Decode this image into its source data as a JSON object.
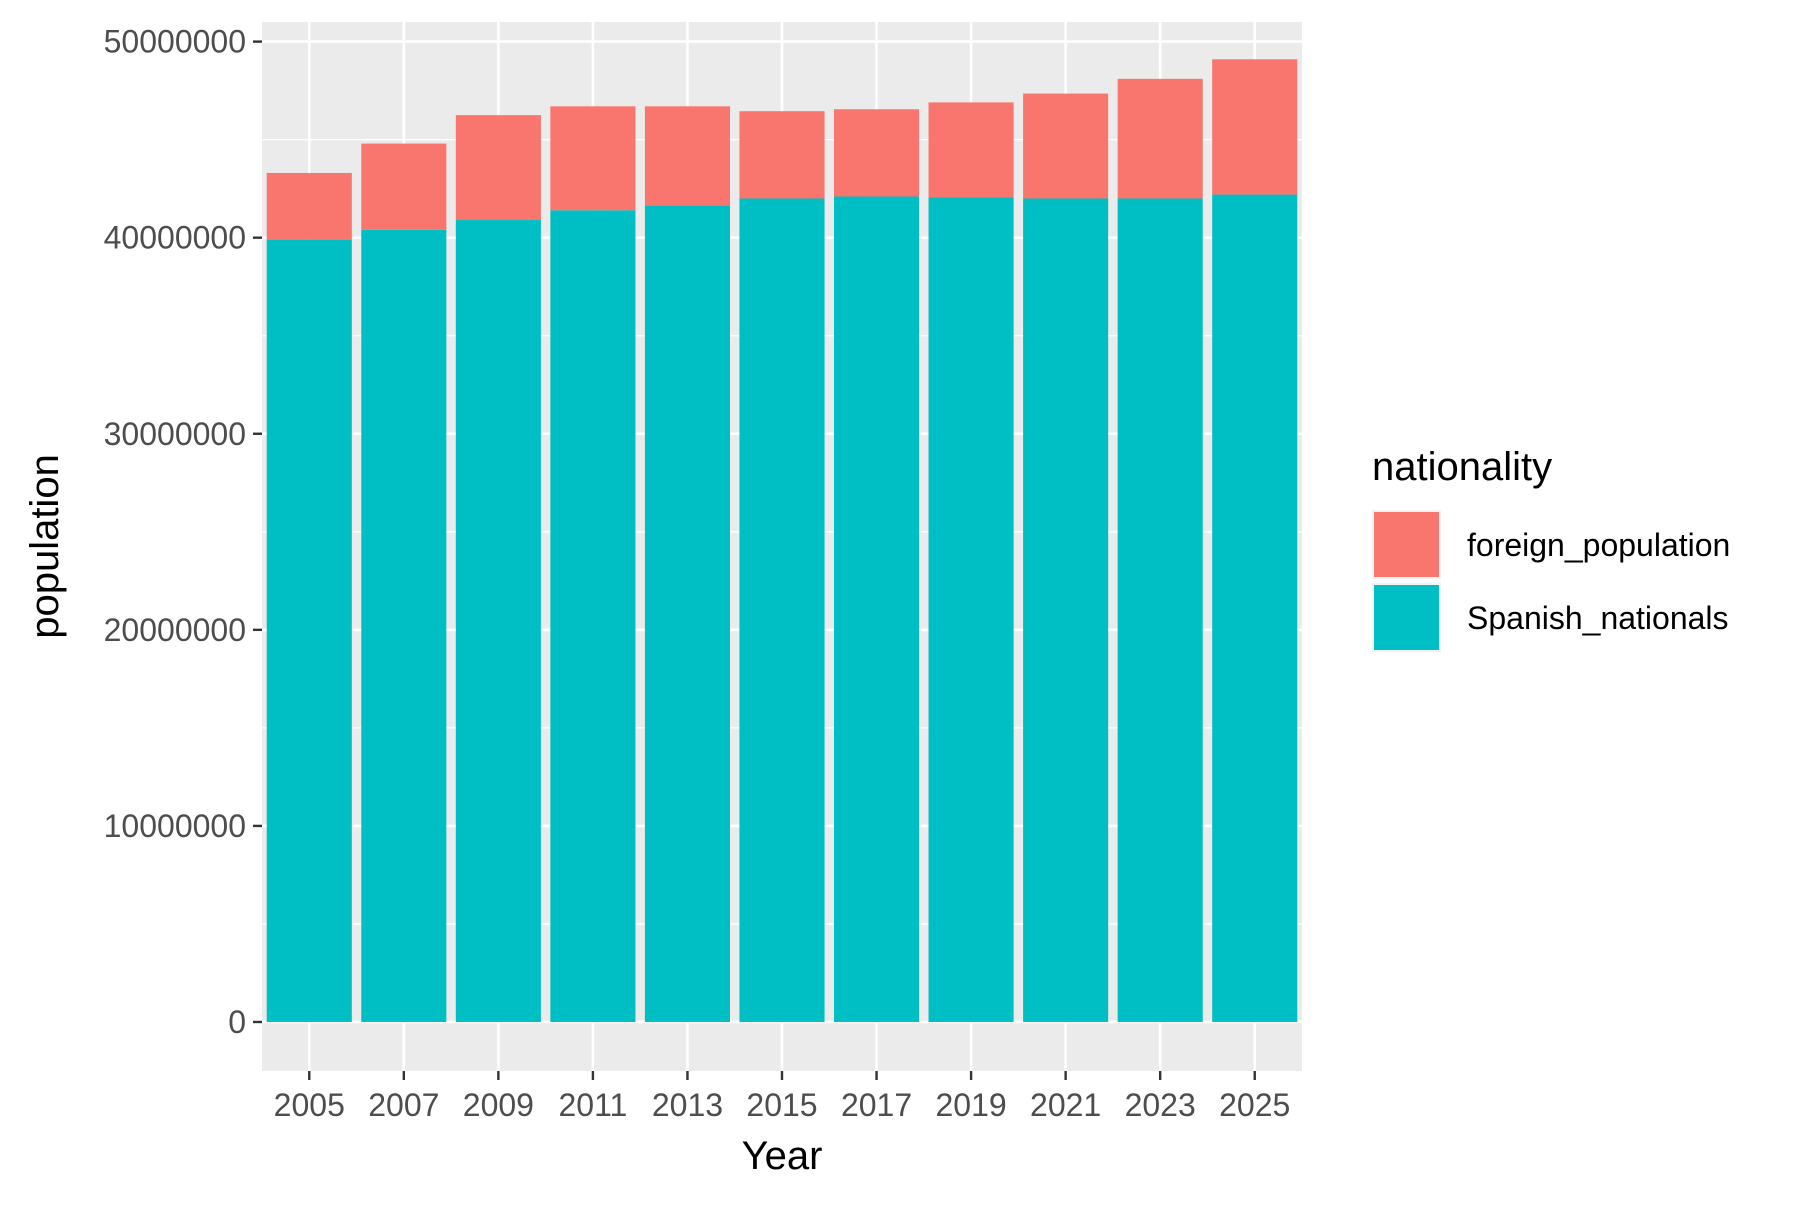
{
  "chart_data": {
    "type": "bar",
    "stacked": true,
    "categories": [
      "2005",
      "2007",
      "2009",
      "2011",
      "2013",
      "2015",
      "2017",
      "2019",
      "2021",
      "2023",
      "2025"
    ],
    "series": [
      {
        "name": "Spanish_nationals",
        "color": "#00BFC4",
        "values": [
          39900000,
          40400000,
          40900000,
          41400000,
          41650000,
          42000000,
          42100000,
          42050000,
          42000000,
          42000000,
          42200000
        ]
      },
      {
        "name": "foreign_population",
        "color": "#F8766D",
        "values": [
          3400000,
          4400000,
          5350000,
          5300000,
          5050000,
          4450000,
          4450000,
          4850000,
          5350000,
          6100000,
          6900000
        ]
      }
    ],
    "xlabel": "Year",
    "ylabel": "population",
    "ylim": [
      -2500000,
      51000000
    ],
    "yticks": [
      0,
      10000000,
      20000000,
      30000000,
      40000000,
      50000000
    ],
    "ytick_labels": [
      "0",
      "10000000",
      "20000000",
      "30000000",
      "40000000",
      "50000000"
    ],
    "grid": true,
    "panel_background": "#EBEBEB",
    "legend": {
      "title": "nationality",
      "position": "right",
      "entries": [
        {
          "label": "foreign_population",
          "color": "#F8766D"
        },
        {
          "label": "Spanish_nationals",
          "color": "#00BFC4"
        }
      ]
    }
  }
}
